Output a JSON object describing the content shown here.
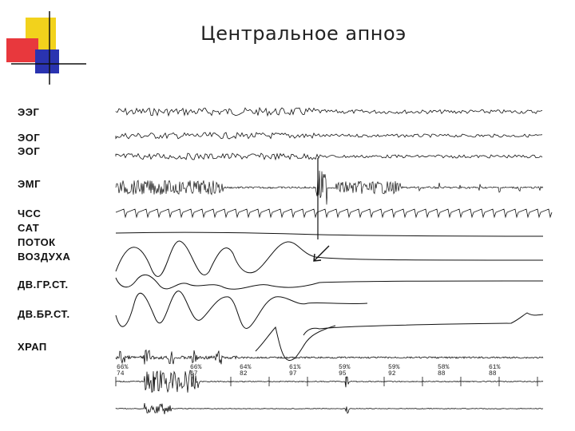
{
  "slide": {
    "title": "Центральное апноэ"
  },
  "channels": [
    {
      "label": "ЭЭГ"
    },
    {
      "label": "ЭОГ"
    },
    {
      "label": "ЭОГ"
    },
    {
      "label": "ЭМГ"
    },
    {
      "label": "ЧСС"
    },
    {
      "label": "САТ"
    },
    {
      "label": "ПОТОК"
    },
    {
      "label": "ВОЗДУХА"
    },
    {
      "label": "ДВ.ГР.СТ."
    },
    {
      "label": "ДВ.БР.СТ."
    },
    {
      "label": "ХРАП"
    }
  ],
  "saturation_readouts": [
    {
      "pct": "66%",
      "val": "74"
    },
    {
      "pct": "66%",
      "val": "67"
    },
    {
      "pct": "64%",
      "val": "82"
    },
    {
      "pct": "61%",
      "val": "97"
    },
    {
      "pct": "59%",
      "val": "95"
    },
    {
      "pct": "59%",
      "val": "92"
    },
    {
      "pct": "58%",
      "val": "88"
    },
    {
      "pct": "61%",
      "val": "88"
    }
  ],
  "colors": {
    "accent_yellow": "#f2d21c",
    "accent_red": "#e8383d",
    "accent_blue": "#2a33b0",
    "trace": "#111111"
  }
}
